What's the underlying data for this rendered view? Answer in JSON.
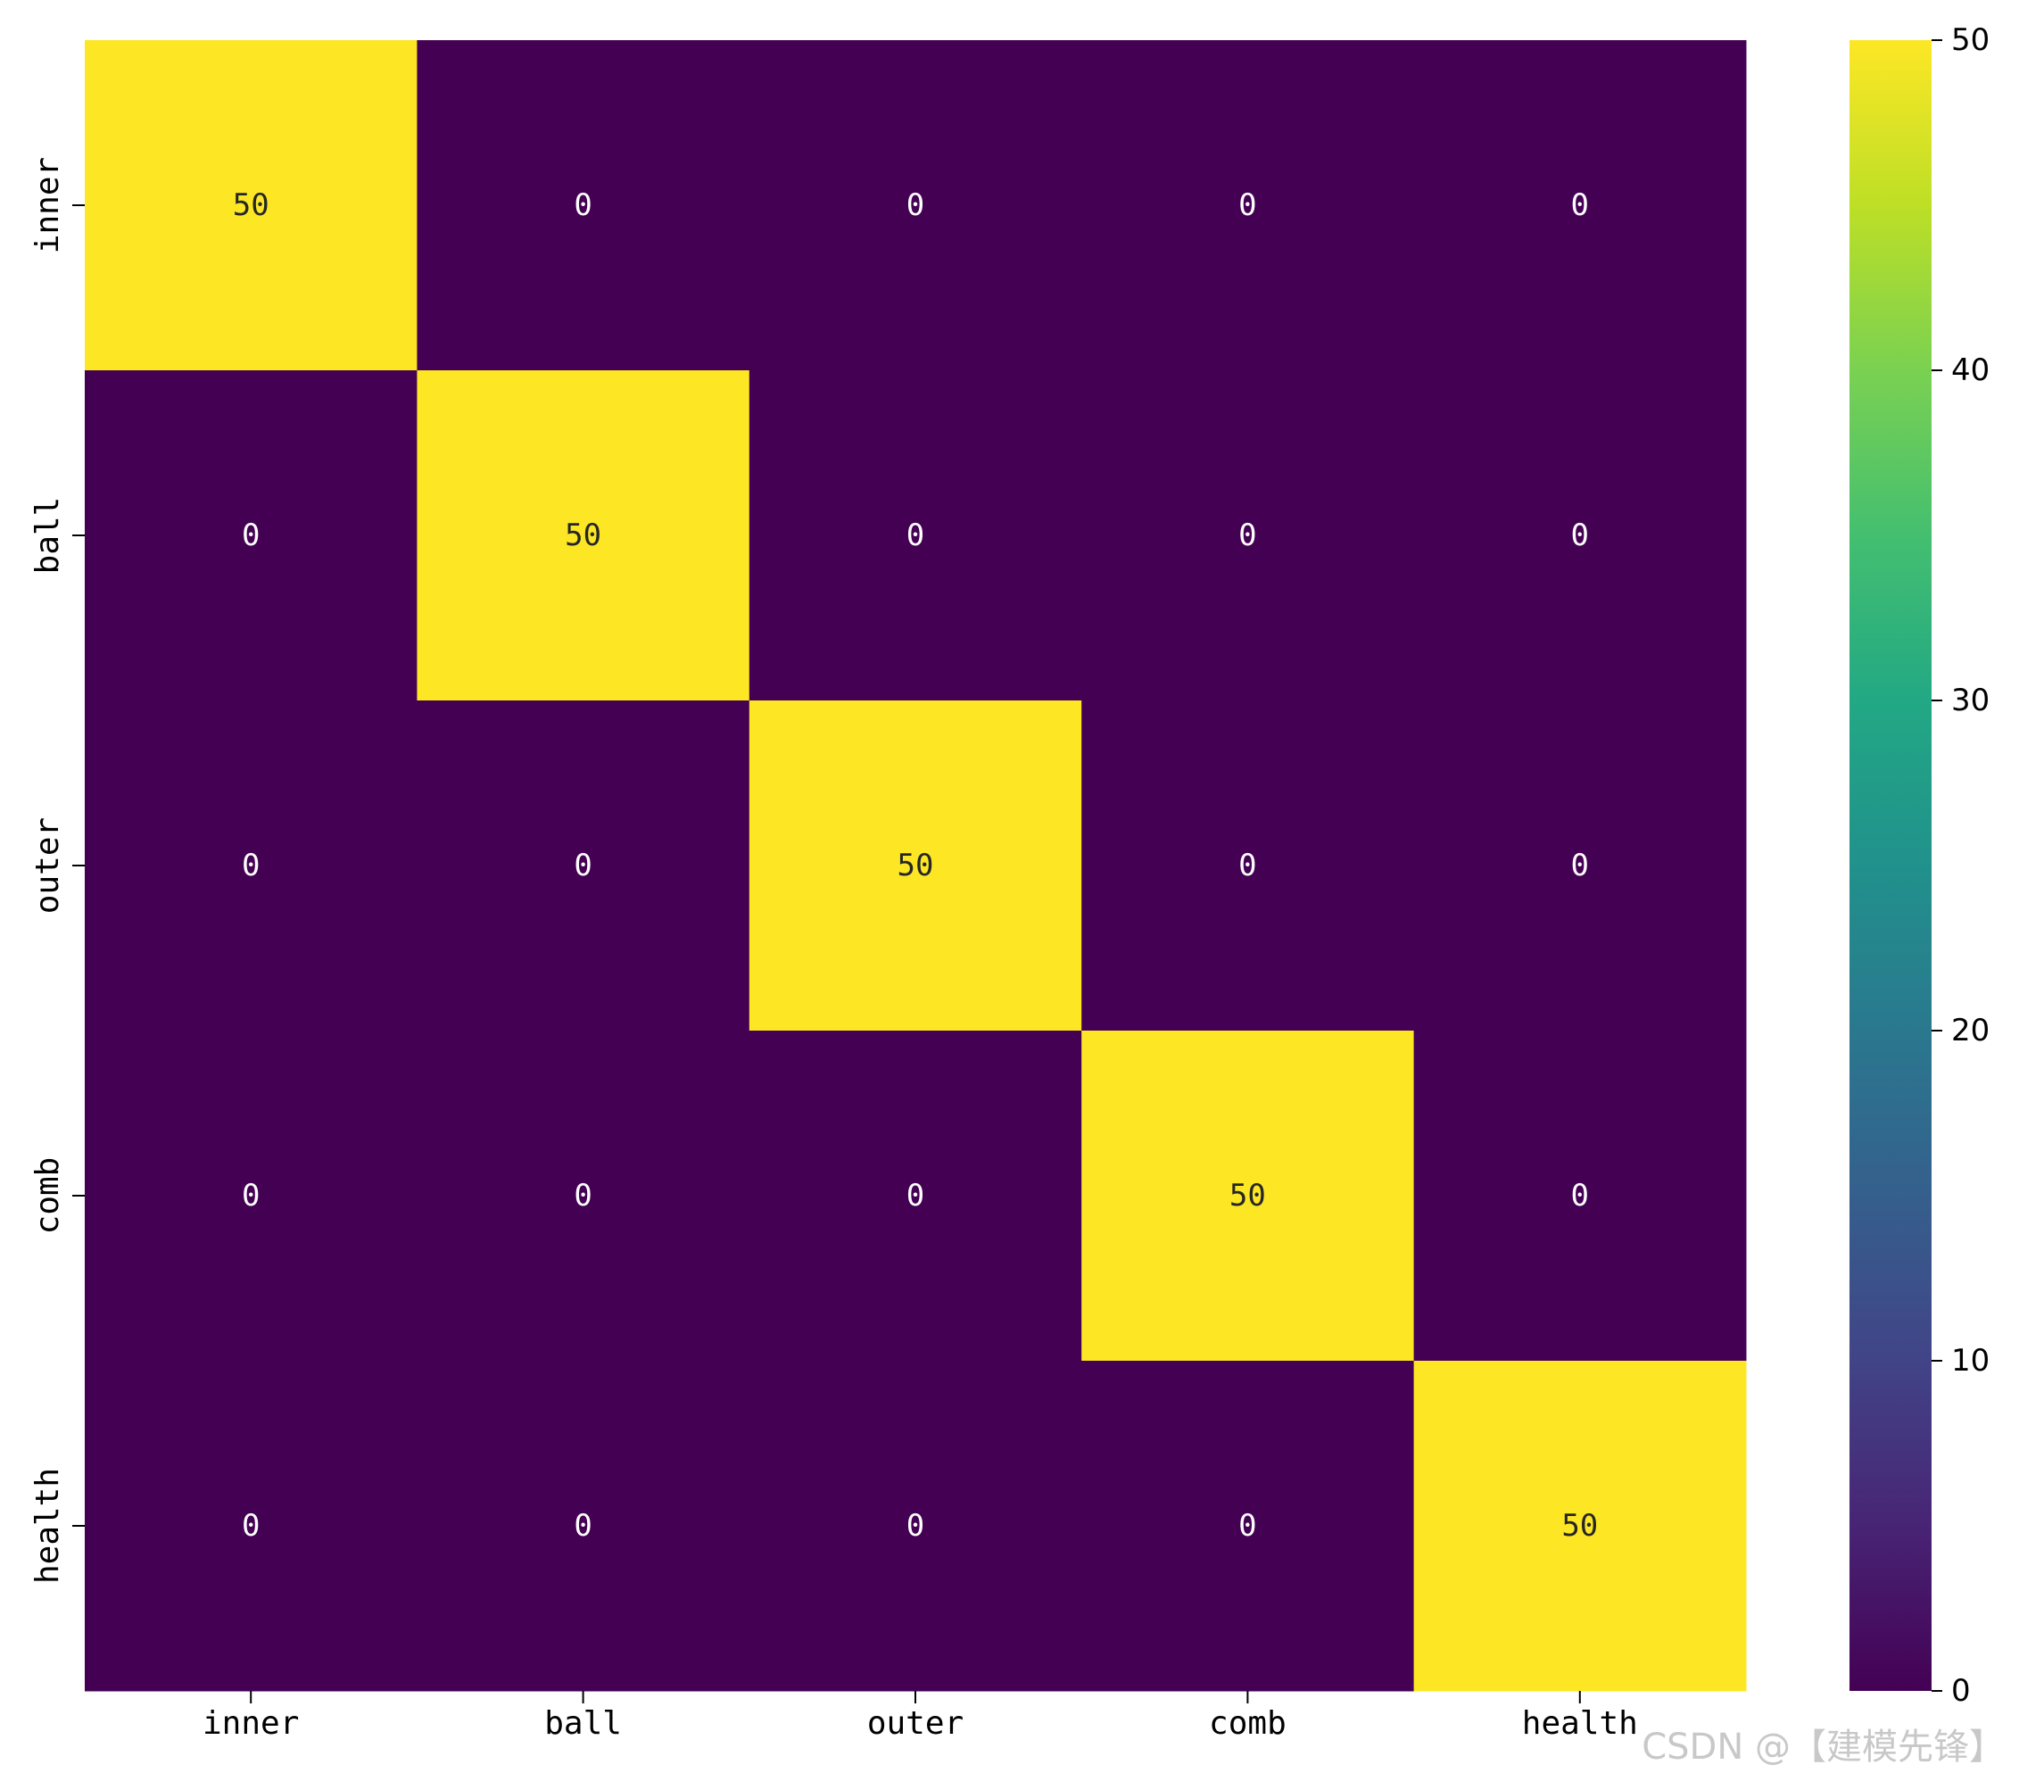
{
  "chart_data": {
    "type": "heatmap",
    "title": "",
    "xlabel": "",
    "ylabel": "",
    "x_categories": [
      "inner",
      "ball",
      "outer",
      "comb",
      "health"
    ],
    "y_categories": [
      "inner",
      "ball",
      "outer",
      "comb",
      "health"
    ],
    "values": [
      [
        50,
        0,
        0,
        0,
        0
      ],
      [
        0,
        50,
        0,
        0,
        0
      ],
      [
        0,
        0,
        50,
        0,
        0
      ],
      [
        0,
        0,
        0,
        50,
        0
      ],
      [
        0,
        0,
        0,
        0,
        50
      ]
    ],
    "colormap": "viridis",
    "vmin": 0,
    "vmax": 50,
    "colorbar_ticks": [
      0,
      10,
      20,
      30,
      40,
      50
    ],
    "annotated": true,
    "grid": false,
    "low_color": "#440154",
    "high_color": "#fde725"
  },
  "watermark": "CSDN @【建模先锋】"
}
